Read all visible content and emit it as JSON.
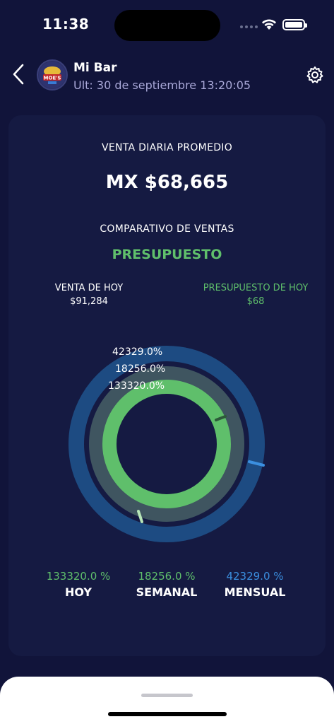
{
  "status": {
    "time": "11:38"
  },
  "header": {
    "title": "Mi Bar",
    "subtitle": "Ult: 30 de septiembre 13:20:05",
    "avatar_text": "MOE'S"
  },
  "summary": {
    "title": "VENTA DIARIA PROMEDIO",
    "value": "MX $68,665"
  },
  "comparison": {
    "title": "COMPARATIVO DE VENTAS",
    "mode": "PRESUPUESTO",
    "left_label": "VENTA DE HOY",
    "left_value": "$91,284",
    "right_label": "PRESUPUESTO DE HOY",
    "right_value": "$68"
  },
  "rings": {
    "outer_label": "42329.0%",
    "middle_label": "18256.0%",
    "inner_label": "133320.0%"
  },
  "stats": {
    "hoy_pct": "133320.0 %",
    "hoy_label": "HOY",
    "semanal_pct": "18256.0 %",
    "semanal_label": "SEMANAL",
    "mensual_pct": "42329.0 %",
    "mensual_label": "MENSUAL"
  },
  "colors": {
    "background": "#11143a",
    "card": "#151a42",
    "green": "#5fbf6b",
    "blue": "#3b8fe0",
    "outer_ring": "#1d4b82",
    "middle_ring": "#3f5560",
    "inner_ring": "#5fbf6b"
  }
}
